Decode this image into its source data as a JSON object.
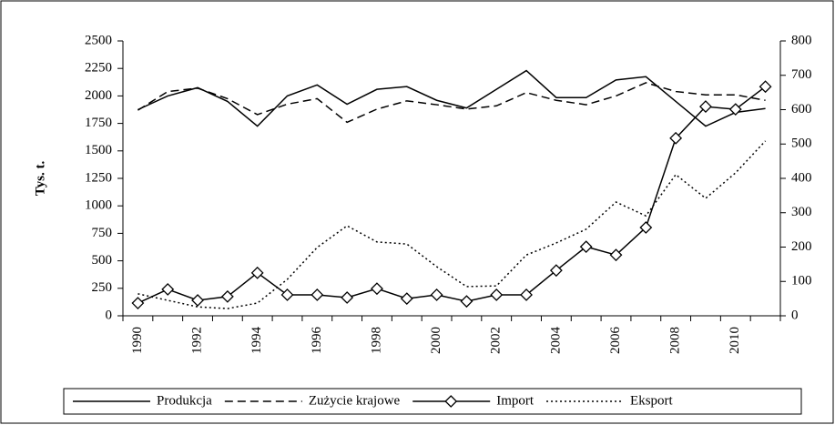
{
  "chart_data": {
    "type": "line",
    "y_label": "Tys. t.",
    "categories": [
      1990,
      null,
      1992,
      null,
      1994,
      null,
      1996,
      null,
      1998,
      null,
      2000,
      null,
      2002,
      null,
      2004,
      null,
      2006,
      null,
      2008,
      null,
      2010,
      null
    ],
    "ylim": [
      0,
      2500
    ],
    "yticks": [
      0,
      250,
      500,
      750,
      1000,
      1250,
      1500,
      1750,
      2000,
      2250,
      2500
    ],
    "y2lim": [
      0,
      800
    ],
    "y2ticks": [
      0,
      100,
      200,
      300,
      400,
      500,
      600,
      700,
      800
    ],
    "legend": "bottom",
    "series": [
      {
        "name": "Produkcja",
        "color": "#000000",
        "style": "solid",
        "values": [
          1875,
          2000,
          2075,
          1950,
          1725,
          2000,
          2100,
          1925,
          2060,
          2085,
          1960,
          1890,
          2060,
          2230,
          1985,
          1985,
          2145,
          2175,
          1950,
          1725,
          1850,
          1885
        ]
      },
      {
        "name": "Zużycie krajowe",
        "color": "#000000",
        "style": "dashed",
        "values": [
          1870,
          2040,
          2070,
          1975,
          1830,
          1925,
          1975,
          1760,
          1880,
          1955,
          1920,
          1880,
          1910,
          2030,
          1960,
          1920,
          2000,
          2120,
          2040,
          2010,
          2010,
          1960
        ]
      },
      {
        "name": "Import",
        "color": "#000000",
        "style": "solid",
        "marker": "diamond",
        "axis": "y2",
        "values": [
          37,
          77,
          45,
          56,
          125,
          61,
          61,
          53,
          79,
          50,
          61,
          42,
          61,
          61,
          132,
          201,
          177,
          257,
          517,
          609,
          601,
          667
        ]
      },
      {
        "name": "Eksport",
        "color": "#000000",
        "style": "dotted",
        "axis": "y2",
        "values": [
          64,
          45,
          26,
          21,
          37,
          106,
          199,
          262,
          215,
          209,
          143,
          85,
          87,
          177,
          212,
          252,
          331,
          291,
          411,
          342,
          416,
          509
        ]
      }
    ]
  }
}
